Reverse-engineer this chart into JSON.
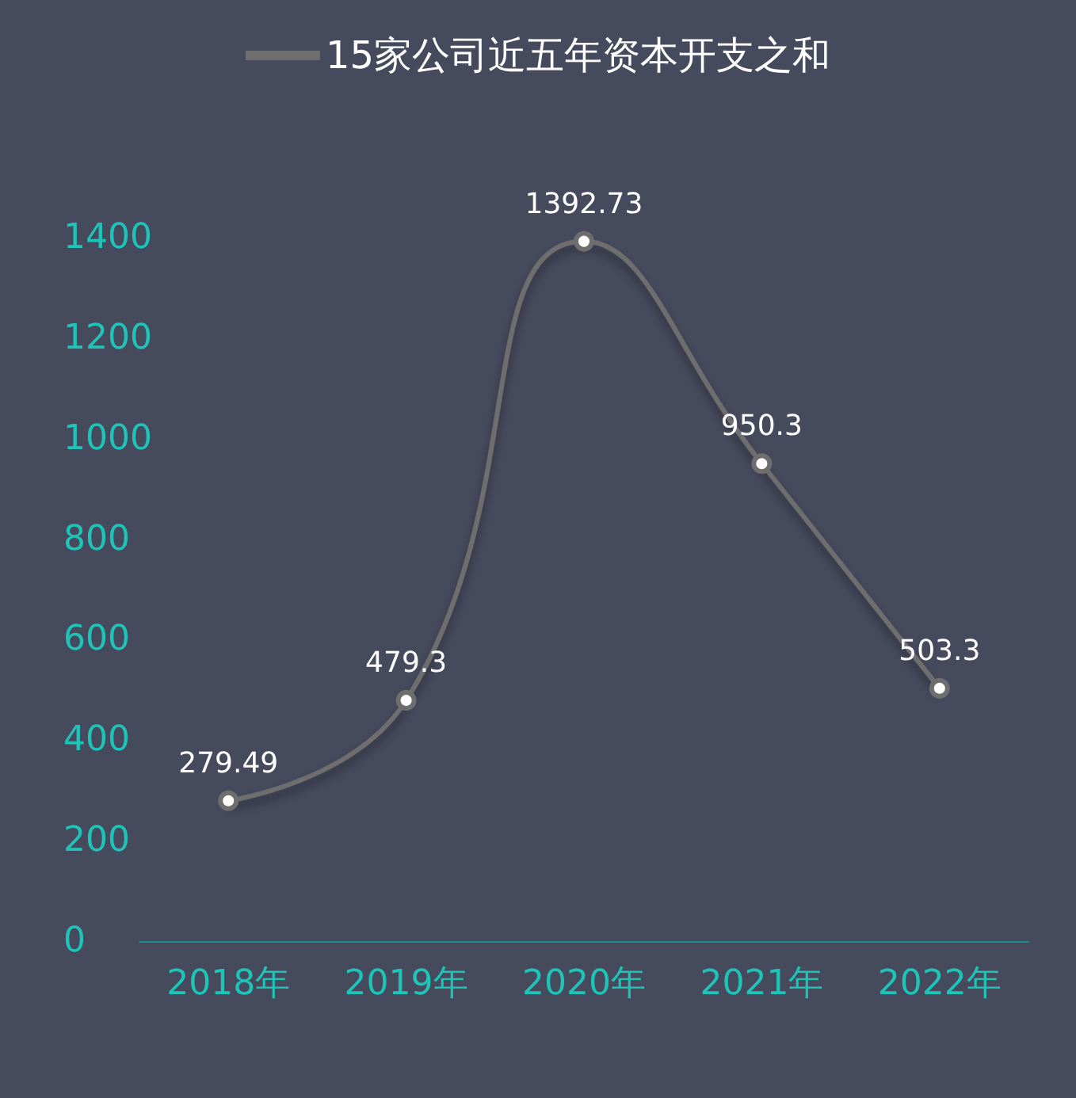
{
  "chart_data": {
    "type": "line",
    "categories": [
      "2018年",
      "2019年",
      "2020年",
      "2021年",
      "2022年"
    ],
    "series": [
      {
        "name": "15家公司近五年资本开支之和",
        "color": "#6e6e6e",
        "values": [
          279.49,
          479.3,
          1392.73,
          950.3,
          503.3
        ]
      }
    ],
    "ylim": [
      0,
      1400
    ],
    "yticks": [
      0,
      200,
      400,
      600,
      800,
      1000,
      1200,
      1400
    ],
    "grid": false,
    "legend": "top",
    "marker": "circle",
    "data_labels": true
  }
}
